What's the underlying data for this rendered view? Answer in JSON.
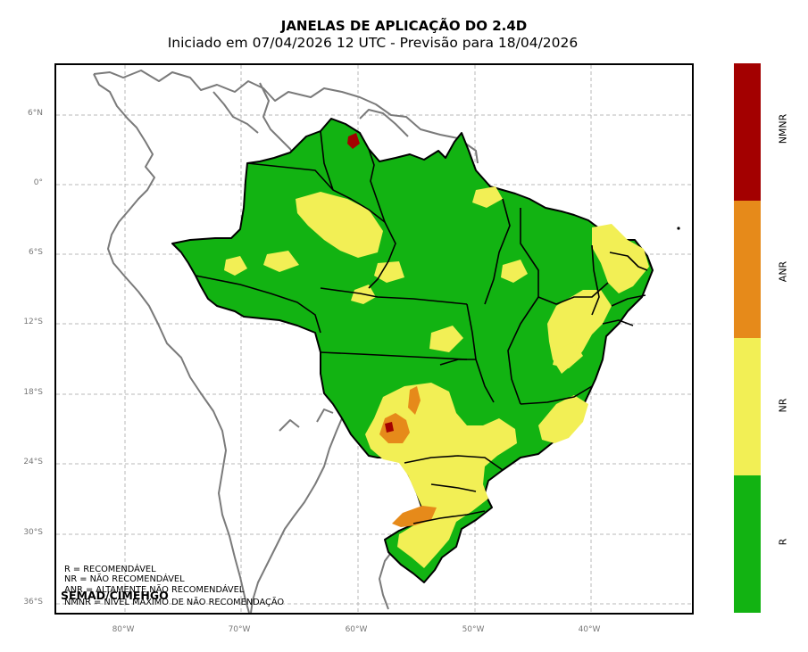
{
  "title": "JANELAS DE APLICAÇÃO DO 2.4D",
  "subtitle": "Iniciado em 07/04/2026 12 UTC - Previsão para 18/04/2026",
  "map": {
    "lat_labels": [
      "6°N",
      "0°",
      "6°S",
      "12°S",
      "18°S",
      "24°S",
      "30°S",
      "36°S"
    ],
    "lon_labels": [
      "80°W",
      "70°W",
      "60°W",
      "50°W",
      "40°W"
    ],
    "lat_range": [
      -36.5,
      10.5
    ],
    "lon_range": [
      -86,
      -31.5
    ],
    "grid": true
  },
  "legend": {
    "line1": "R = RECOMENDÁVEL",
    "line2": "NR = NÃO RECOMENDÁVEL",
    "line3": "ANR = ALTAMENTE NÃO RECOMENDÁVEL",
    "line4": "NMNR = NÍVEL MÁXIMO DE NÃO RECOMENDAÇÃO"
  },
  "credit": "SEMAD/CIMEHGO",
  "colorbar": [
    {
      "label": "NMNR",
      "color": "#a30000"
    },
    {
      "label": "ANR",
      "color": "#e68a1a"
    },
    {
      "label": "NR",
      "color": "#f2ef55"
    },
    {
      "label": "R",
      "color": "#12b312"
    }
  ]
}
